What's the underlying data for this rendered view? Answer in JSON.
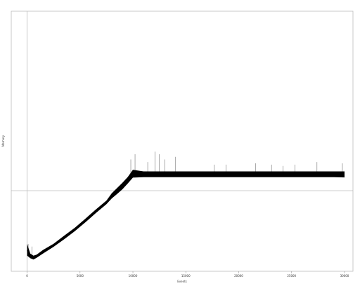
{
  "chart_data": {
    "type": "line",
    "title": "",
    "xlabel": "Events",
    "ylabel": "Memory",
    "xlim": [
      -1500,
      30800
    ],
    "ylim": [
      0,
      1
    ],
    "grid": false,
    "x_ticks": [
      0,
      5000,
      10000,
      15000,
      20000,
      25000,
      30000
    ],
    "x_tick_labels": [
      "0",
      "5000",
      "10000",
      "15000",
      "20000",
      "25000",
      "30000"
    ],
    "reference_lines": {
      "horizontal_y": 0.31,
      "vertical_x": 0
    },
    "series": [
      {
        "color": "#000000",
        "x": [
          0,
          300,
          600,
          900,
          1500,
          2500,
          3500,
          4500,
          5500,
          6500,
          7500,
          8000,
          8500,
          9000,
          9500,
          10000,
          11000,
          13000,
          15000,
          17000,
          19000,
          21000,
          23000,
          25000,
          27000,
          29000,
          30000
        ],
        "y": [
          0.08,
          0.055,
          0.05,
          0.058,
          0.075,
          0.1,
          0.13,
          0.16,
          0.195,
          0.23,
          0.265,
          0.288,
          0.305,
          0.325,
          0.345,
          0.372,
          0.373,
          0.373,
          0.373,
          0.373,
          0.372,
          0.373,
          0.373,
          0.373,
          0.373,
          0.373,
          0.372
        ],
        "band_min": [
          0.06,
          0.05,
          0.045,
          0.052,
          0.068,
          0.094,
          0.123,
          0.154,
          0.188,
          0.224,
          0.258,
          0.28,
          0.297,
          0.315,
          0.337,
          0.36,
          0.362,
          0.362,
          0.362,
          0.362,
          0.362,
          0.362,
          0.362,
          0.362,
          0.362,
          0.362,
          0.361
        ],
        "band_max": [
          0.105,
          0.068,
          0.06,
          0.064,
          0.082,
          0.106,
          0.137,
          0.167,
          0.202,
          0.238,
          0.272,
          0.3,
          0.32,
          0.34,
          0.362,
          0.39,
          0.384,
          0.384,
          0.384,
          0.384,
          0.384,
          0.384,
          0.384,
          0.384,
          0.384,
          0.384,
          0.384
        ],
        "spikes": [
          {
            "x": 100,
            "y": 0.105
          },
          {
            "x": 450,
            "y": 0.095
          },
          {
            "x": 9800,
            "y": 0.43
          },
          {
            "x": 10200,
            "y": 0.45
          },
          {
            "x": 11400,
            "y": 0.42
          },
          {
            "x": 12100,
            "y": 0.46
          },
          {
            "x": 12500,
            "y": 0.45
          },
          {
            "x": 13000,
            "y": 0.43
          },
          {
            "x": 14000,
            "y": 0.44
          },
          {
            "x": 17700,
            "y": 0.41
          },
          {
            "x": 18800,
            "y": 0.41
          },
          {
            "x": 21600,
            "y": 0.415
          },
          {
            "x": 23100,
            "y": 0.41
          },
          {
            "x": 24200,
            "y": 0.405
          },
          {
            "x": 25300,
            "y": 0.41
          },
          {
            "x": 27400,
            "y": 0.42
          },
          {
            "x": 29800,
            "y": 0.415
          }
        ]
      }
    ]
  }
}
